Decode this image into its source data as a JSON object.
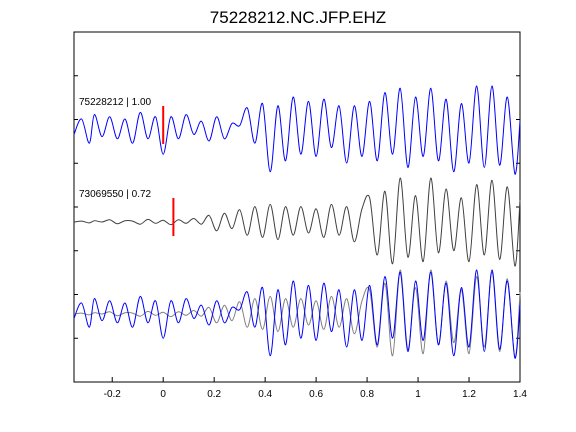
{
  "chart_data": {
    "type": "line",
    "title": "75228212.NC.JFP.EHZ",
    "xlabel": "",
    "ylabel": "",
    "xlim": [
      -0.35,
      1.4
    ],
    "x_ticks": [
      -0.2,
      0,
      0.2,
      0.4,
      0.6,
      0.8,
      1,
      1.2,
      1.4
    ],
    "x_tick_labels": [
      "-0.2",
      "0",
      "0.2",
      "0.4",
      "0.6",
      "0.8",
      "1",
      "1.2",
      "1.4"
    ],
    "grid": false,
    "colors": {
      "primary": "#0000ff",
      "secondary": "#404040",
      "overlay_secondary": "#808080",
      "pick": "#ff0000"
    },
    "traces": [
      {
        "label": "75228212 | 1.00",
        "color": "#0000ff",
        "pick_time": 0.0,
        "x": [
          -0.35,
          -0.32,
          -0.29,
          -0.27,
          -0.24,
          -0.21,
          -0.18,
          -0.15,
          -0.12,
          -0.09,
          -0.06,
          -0.03,
          0.0,
          0.03,
          0.06,
          0.09,
          0.12,
          0.15,
          0.18,
          0.21,
          0.24,
          0.27,
          0.3,
          0.33,
          0.36,
          0.39,
          0.42,
          0.45,
          0.48,
          0.51,
          0.54,
          0.57,
          0.6,
          0.63,
          0.66,
          0.69,
          0.72,
          0.75,
          0.78,
          0.81,
          0.84,
          0.87,
          0.9,
          0.93,
          0.96,
          0.99,
          1.02,
          1.05,
          1.08,
          1.11,
          1.14,
          1.17,
          1.2,
          1.23,
          1.26,
          1.29,
          1.32,
          1.35,
          1.38,
          1.4
        ],
        "values": [
          -0.1,
          0.25,
          -0.3,
          0.35,
          -0.15,
          0.3,
          -0.2,
          0.25,
          -0.3,
          0.4,
          -0.2,
          0.3,
          -0.55,
          0.3,
          -0.2,
          0.35,
          -0.1,
          0.2,
          -0.25,
          0.3,
          -0.2,
          0.15,
          0.1,
          0.5,
          -0.3,
          0.6,
          -0.95,
          0.55,
          -0.7,
          0.75,
          -0.55,
          0.65,
          -0.6,
          0.7,
          -0.4,
          0.55,
          -0.75,
          0.55,
          -0.6,
          0.65,
          -0.7,
          0.85,
          -0.55,
          0.95,
          -0.85,
          0.75,
          -0.6,
          0.95,
          -0.7,
          0.7,
          -0.95,
          0.6,
          -0.75,
          1.0,
          -0.85,
          1.0,
          -0.8,
          0.75,
          -1.0,
          0.2
        ]
      },
      {
        "label": "73069550 | 0.72",
        "color": "#404040",
        "pick_time": 0.04,
        "x": [
          -0.35,
          -0.32,
          -0.29,
          -0.27,
          -0.24,
          -0.21,
          -0.18,
          -0.15,
          -0.12,
          -0.09,
          -0.06,
          -0.03,
          0.0,
          0.03,
          0.06,
          0.09,
          0.12,
          0.15,
          0.18,
          0.21,
          0.24,
          0.27,
          0.3,
          0.33,
          0.36,
          0.39,
          0.42,
          0.45,
          0.48,
          0.51,
          0.54,
          0.57,
          0.6,
          0.63,
          0.66,
          0.69,
          0.72,
          0.75,
          0.78,
          0.81,
          0.84,
          0.87,
          0.9,
          0.93,
          0.96,
          0.99,
          1.02,
          1.05,
          1.08,
          1.11,
          1.14,
          1.17,
          1.2,
          1.23,
          1.26,
          1.29,
          1.32,
          1.35,
          1.38,
          1.4
        ],
        "values": [
          0.0,
          0.02,
          -0.02,
          0.03,
          0.0,
          0.05,
          -0.04,
          0.03,
          0.02,
          -0.05,
          0.06,
          -0.03,
          0.04,
          -0.06,
          0.05,
          -0.03,
          0.08,
          -0.05,
          0.15,
          -0.2,
          0.2,
          -0.15,
          0.28,
          -0.3,
          0.35,
          -0.35,
          0.4,
          -0.4,
          0.35,
          -0.3,
          0.35,
          -0.25,
          0.3,
          -0.35,
          0.4,
          -0.3,
          0.35,
          -0.45,
          0.3,
          0.55,
          -0.75,
          0.7,
          -0.95,
          1.0,
          -0.8,
          0.6,
          -0.9,
          1.0,
          -0.7,
          0.75,
          -0.65,
          0.55,
          -0.9,
          0.85,
          -0.75,
          0.95,
          -0.85,
          0.8,
          -1.0,
          0.5
        ]
      }
    ],
    "overlay": {
      "description": "",
      "series_colors": [
        "#0000ff",
        "#808080"
      ]
    }
  }
}
